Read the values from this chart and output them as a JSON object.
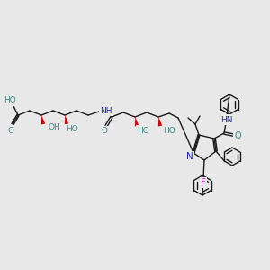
{
  "bg_color": "#e8e8e8",
  "bond_color": "#1a1a1a",
  "atom_colors": {
    "O": "#3a8888",
    "N": "#2222bb",
    "F": "#bb44bb",
    "red_bond": "#cc0000"
  },
  "figsize": [
    3.0,
    3.0
  ],
  "dpi": 100,
  "xlim": [
    0,
    300
  ],
  "ylim": [
    0,
    300
  ]
}
